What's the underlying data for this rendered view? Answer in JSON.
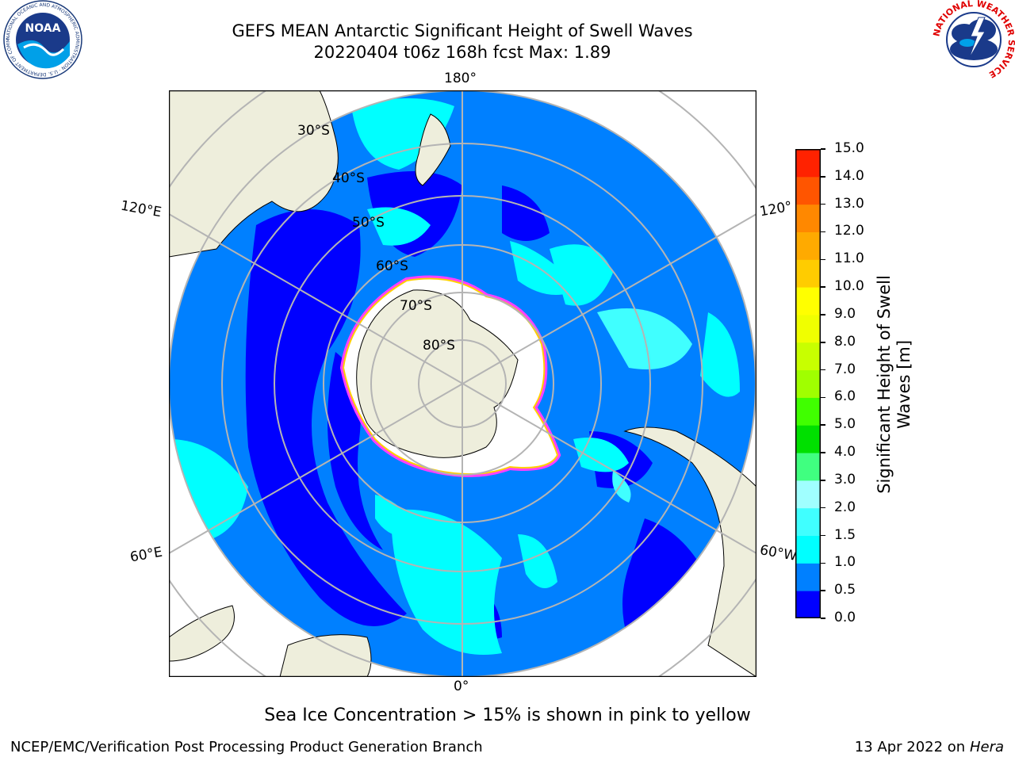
{
  "header": {
    "title_line1": "GEFS MEAN Antarctic Significant Height of Swell Waves",
    "title_line2": "20220404 t06z 168h fcst   Max: 1.89"
  },
  "logos": {
    "left": "NOAA",
    "left_ring_text": "NATIONAL OCEANIC AND ATMOSPHERIC ADMINISTRATION · U.S. DEPARTMENT OF COMMERCE",
    "right_ring_text": "NATIONAL WEATHER SERVICE"
  },
  "map": {
    "projection": "south-polar-stereographic",
    "longitude_labels": {
      "top": "180°",
      "bottom": "0°",
      "left_upper": "120°E",
      "left_lower": "60°E",
      "right_upper": "120°",
      "right_lower": "60°W"
    },
    "latitude_labels": [
      "30°S",
      "40°S",
      "50°S",
      "60°S",
      "70°S",
      "80°S"
    ],
    "colors": {
      "land": "#eeeedc",
      "ocean_0_0.5": "#0000ff",
      "ocean_0.5_1.0": "#0080ff",
      "ocean_1.0_1.5": "#00ffff",
      "ocean_1.5_2.0": "#40ffff",
      "sea_ice": "#ff40ff",
      "grid": "#b4b4b4"
    }
  },
  "colorbar": {
    "label_line1": "Significant Height of Swell",
    "label_line2": "Waves [m]",
    "ticks": [
      "0.0",
      "0.5",
      "1.0",
      "1.5",
      "2.0",
      "3.0",
      "4.0",
      "5.0",
      "6.0",
      "7.0",
      "8.0",
      "9.0",
      "10.0",
      "11.0",
      "12.0",
      "13.0",
      "14.0",
      "15.0"
    ],
    "colors": [
      "#0000ff",
      "#0080ff",
      "#00ffff",
      "#40ffff",
      "#a0ffff",
      "#40ff80",
      "#00e000",
      "#40ff00",
      "#a0ff00",
      "#c8ff00",
      "#f0ff00",
      "#ffff00",
      "#ffcc00",
      "#ffaa00",
      "#ff8800",
      "#ff5500",
      "#ff2200",
      "#ff0000"
    ]
  },
  "footer": {
    "note": "Sea Ice Concentration > 15% is shown in pink to yellow",
    "credit": "NCEP/EMC/Verification Post Processing Product Generation Branch",
    "date": "13 Apr 2022 on ",
    "host": "Hera"
  }
}
